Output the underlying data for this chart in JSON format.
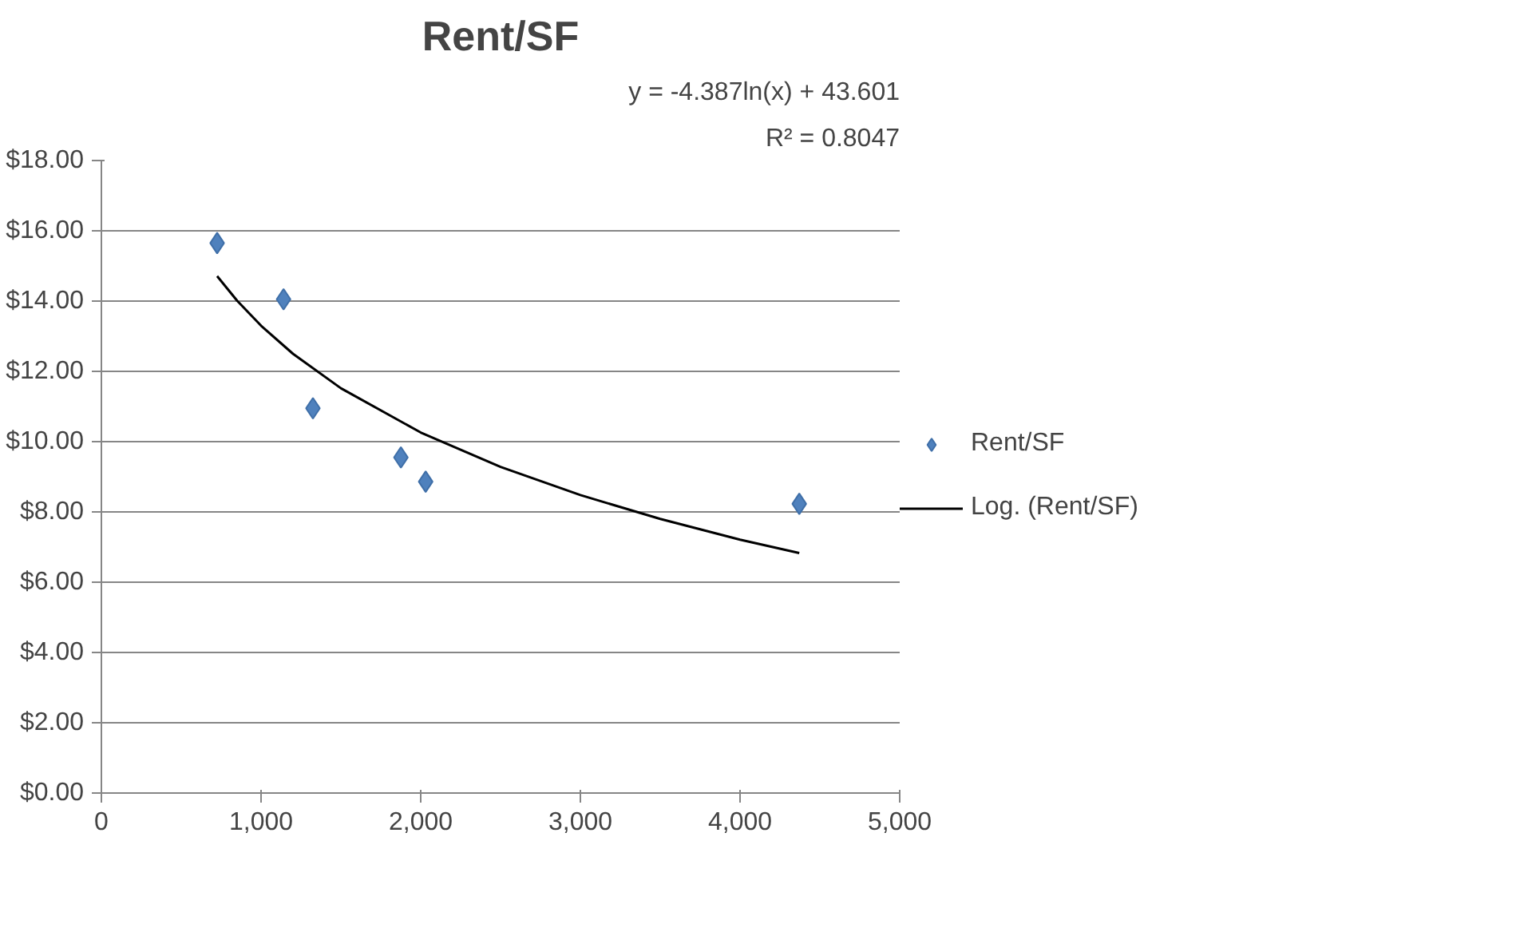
{
  "chart_data": {
    "type": "scatter",
    "title": "Rent/SF",
    "annotations": [
      "y = -4.387ln(x) + 43.601",
      "R² = 0.8047"
    ],
    "xlim": [
      0,
      5000
    ],
    "xticks": [
      0,
      {
        "value": 1000,
        "label": "1,000"
      },
      {
        "value": 2000,
        "label": "2,000"
      },
      {
        "value": 3000,
        "label": "3,000"
      },
      {
        "value": 4000,
        "label": "4,000"
      },
      {
        "value": 5000,
        "label": "5,000"
      }
    ],
    "ylim": [
      0,
      18
    ],
    "yticks": [
      {
        "value": 0,
        "label": "$0.00"
      },
      {
        "value": 2,
        "label": "$2.00"
      },
      {
        "value": 4,
        "label": "$4.00"
      },
      {
        "value": 6,
        "label": "$6.00"
      },
      {
        "value": 8,
        "label": "$8.00"
      },
      {
        "value": 10,
        "label": "$10.00"
      },
      {
        "value": 12,
        "label": "$12.00"
      },
      {
        "value": 14,
        "label": "$14.00"
      },
      {
        "value": 16,
        "label": "$16.00"
      },
      {
        "value": 18,
        "label": "$18.00"
      }
    ],
    "grid": "y",
    "legend": "right",
    "marker": "diamond",
    "series": [
      {
        "name": "Rent/SF",
        "color": "#4f81bd",
        "x": [
          725,
          1141,
          1325,
          1876,
          2031,
          4371
        ],
        "values": [
          15.65,
          14.05,
          10.95,
          9.55,
          8.86,
          8.23
        ]
      },
      {
        "name": "Log. (Rent/SF)",
        "type": "line",
        "color": "#000000",
        "marker": "none",
        "x": [
          725,
          850,
          1000,
          1200,
          1500,
          2000,
          2500,
          3000,
          3500,
          4000,
          4371
        ],
        "values": [
          14.71,
          14.01,
          13.3,
          12.5,
          11.52,
          10.26,
          9.28,
          8.48,
          7.8,
          7.21,
          6.83
        ]
      }
    ]
  }
}
